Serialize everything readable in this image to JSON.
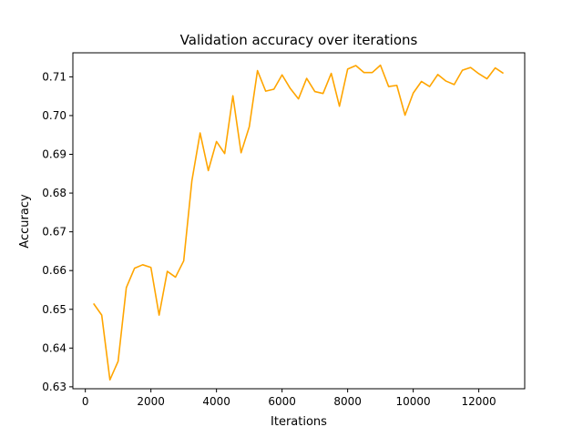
{
  "chart_data": {
    "type": "line",
    "title": "Validation accuracy over iterations",
    "xlabel": "Iterations",
    "ylabel": "Accuracy",
    "xlim": [
      -380,
      13400
    ],
    "ylim": [
      0.6295,
      0.7162
    ],
    "x_ticks": [
      0,
      2000,
      4000,
      6000,
      8000,
      10000,
      12000
    ],
    "y_ticks": [
      0.63,
      0.64,
      0.65,
      0.66,
      0.67,
      0.68,
      0.69,
      0.7,
      0.71
    ],
    "x_tick_labels": [
      "0",
      "2000",
      "4000",
      "6000",
      "8000",
      "10000",
      "12000"
    ],
    "y_tick_labels": [
      "0.63",
      "0.64",
      "0.65",
      "0.66",
      "0.67",
      "0.68",
      "0.69",
      "0.70",
      "0.71"
    ],
    "grid": false,
    "line_color": "#ffa500",
    "series": [
      {
        "x": [
          250,
          500,
          750,
          1000,
          1250,
          1500,
          1750,
          2000,
          2250,
          2500,
          2750,
          3000,
          3250,
          3500,
          3750,
          4000,
          4250,
          4500,
          4750,
          5000,
          5250,
          5500,
          5750,
          6000,
          6250,
          6500,
          6750,
          7000,
          7250,
          7500,
          7750,
          8000,
          8250,
          8500,
          8750,
          9000,
          9250,
          9500,
          9750,
          10000,
          10250,
          10500,
          10750,
          11000,
          11250,
          11500,
          11750,
          12000,
          12250,
          12500,
          12750
        ],
        "values": [
          0.6515,
          0.6485,
          0.6318,
          0.6366,
          0.6556,
          0.6606,
          0.6615,
          0.6608,
          0.6485,
          0.6598,
          0.6583,
          0.6625,
          0.6832,
          0.6955,
          0.6858,
          0.6933,
          0.6902,
          0.7051,
          0.6904,
          0.6971,
          0.7116,
          0.7063,
          0.7068,
          0.7105,
          0.707,
          0.7043,
          0.7096,
          0.7062,
          0.7057,
          0.7109,
          0.7024,
          0.712,
          0.7129,
          0.7111,
          0.7111,
          0.713,
          0.7075,
          0.7078,
          0.7001,
          0.7058,
          0.7088,
          0.7075,
          0.7106,
          0.7089,
          0.708,
          0.7117,
          0.7124,
          0.7108,
          0.7095,
          0.7123,
          0.7109
        ]
      }
    ]
  }
}
